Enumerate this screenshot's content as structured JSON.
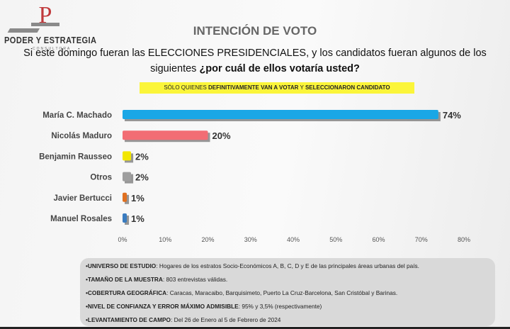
{
  "brand": {
    "name": "PODER Y ESTRATEGIA",
    "sub": "CONSULTORA",
    "letter": "P"
  },
  "title": "INTENCIÓN DE VOTO",
  "question": {
    "line1": "Si este domingo fueran las ELECCIONES PRESIDENCIALES, y los candidatos fueran algunos de los",
    "line2_plain": "siguientes ",
    "line2_bold": "¿por cuál de ellos votaría usted?"
  },
  "note": {
    "a": "SÓLO QUIENES ",
    "b": "DEFINITIVAMENTE VAN A VOTAR",
    "c": " Y ",
    "d": "SELECCIONARON CANDIDATO"
  },
  "chart_data": {
    "type": "bar",
    "orientation": "horizontal",
    "categories": [
      "María C. Machado",
      "Nicolás Maduro",
      "Benjamin Rausseo",
      "Otros",
      "Javier Bertucci",
      "Manuel Rosales"
    ],
    "values": [
      74,
      20,
      2,
      2,
      1,
      1
    ],
    "data_labels": [
      "74%",
      "20%",
      "2%",
      "2%",
      "1%",
      "1%"
    ],
    "colors": [
      "#1aa7e6",
      "#f26d74",
      "#f2e600",
      "#9e9e9e",
      "#e07020",
      "#3a7cc0"
    ],
    "xlim": [
      0,
      80
    ],
    "ticks": [
      "0%",
      "10%",
      "20%",
      "30%",
      "40%",
      "50%",
      "60%",
      "70%",
      "80%"
    ],
    "grid": false
  },
  "footer": [
    {
      "label": "•UNIVERSO DE ESTUDIO",
      "text": ": Hogares de los estratos Socio-Económicos A, B, C, D y E de las principales áreas urbanas del país."
    },
    {
      "label": "•TAMAÑO DE LA MUESTRA",
      "text": ": 803 entrevistas válidas."
    },
    {
      "label": "•COBERTURA GEOGRÁFICA",
      "text": ": Caracas, Maracaibo, Barquisimeto, Puerto La Cruz-Barcelona, San Cristóbal y Barinas."
    },
    {
      "label": "•NIVEL DE CONFIANZA Y ERROR MÁXIMO ADMISIBLE",
      "text": ": 95% y 3,5% (respectivamente)"
    },
    {
      "label": "•LEVANTAMIENTO DE CAMPO",
      "text": ": Del 26 de Enero al 5 de Febrero de 2024"
    }
  ]
}
